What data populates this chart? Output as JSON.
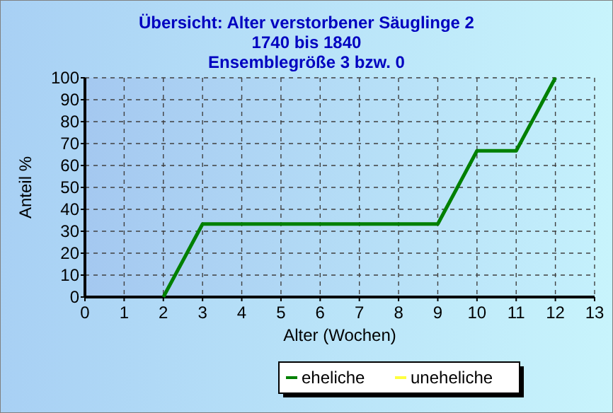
{
  "chart_data": {
    "type": "line",
    "title": "Übersicht: Alter verstorbener Säuglinge 2",
    "subtitle": "1740 bis 1840\nEnsemblegröße 3 bzw. 0",
    "xlabel": "Alter (Wochen)",
    "ylabel": "Anteil %",
    "xlim": [
      0,
      13
    ],
    "xticks": [
      0,
      1,
      2,
      3,
      4,
      5,
      6,
      7,
      8,
      9,
      10,
      11,
      12,
      13
    ],
    "ylim": [
      0,
      100
    ],
    "yticks": [
      0,
      10,
      20,
      30,
      40,
      50,
      60,
      70,
      80,
      90,
      100
    ],
    "series": [
      {
        "name": "eheliche",
        "color": "#008000",
        "x": [
          2,
          3,
          4,
          5,
          6,
          7,
          8,
          9,
          10,
          11,
          12
        ],
        "values": [
          0,
          33.3,
          33.3,
          33.3,
          33.3,
          33.3,
          33.3,
          33.3,
          66.7,
          66.7,
          100
        ]
      },
      {
        "name": "uneheliche",
        "color": "#ffff40"
      }
    ],
    "grid": true,
    "legend": "bottom",
    "marker": "none",
    "line_style": "solid"
  }
}
